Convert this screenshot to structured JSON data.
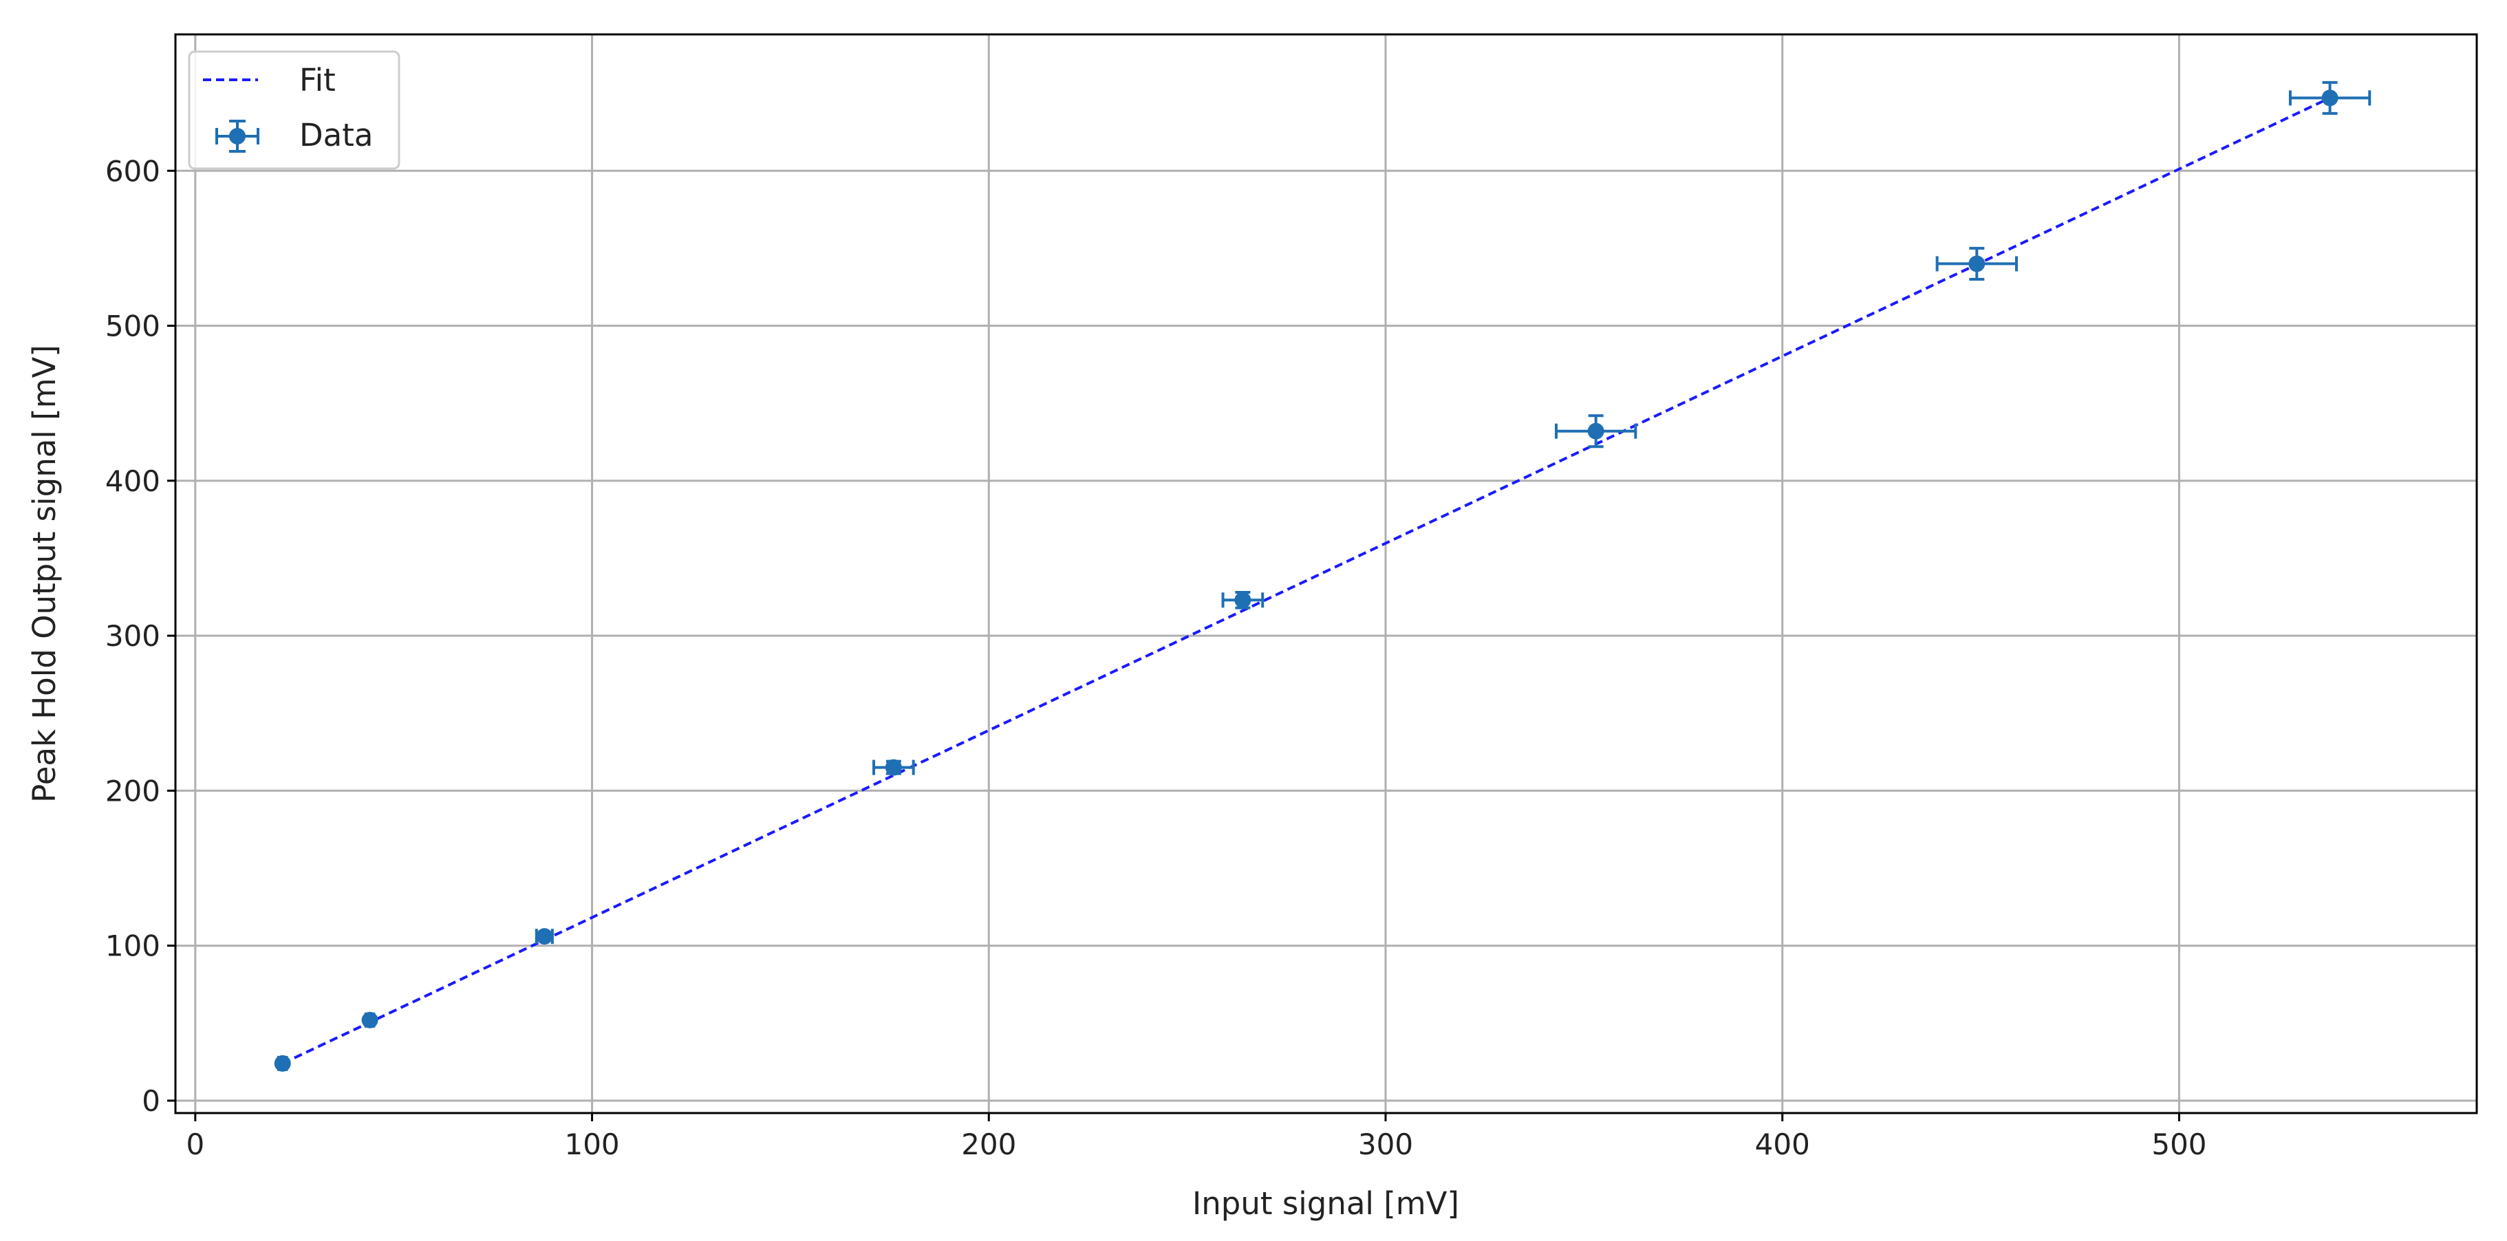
{
  "chart_data": {
    "type": "scatter",
    "title": "",
    "xlabel": "Input signal [mV]",
    "ylabel": "Peak Hold Output signal [mV]",
    "xlim": [
      -5,
      575
    ],
    "ylim": [
      -8,
      688
    ],
    "xticks": [
      0,
      100,
      200,
      300,
      400,
      500
    ],
    "yticks": [
      0,
      100,
      200,
      300,
      400,
      500,
      600
    ],
    "grid": true,
    "legend": {
      "position": "top-left",
      "entries": [
        "Fit",
        "Data"
      ]
    },
    "series": [
      {
        "name": "Fit",
        "kind": "line",
        "style": "dashed",
        "color": "#1a1aff",
        "x": [
          22,
          538
        ],
        "y": [
          24,
          647
        ]
      },
      {
        "name": "Data",
        "kind": "errorbar",
        "color": "#1f6fb4",
        "points": [
          {
            "x": 22,
            "y": 24,
            "xerr": 1,
            "yerr": 1
          },
          {
            "x": 44,
            "y": 52,
            "xerr": 1,
            "yerr": 1
          },
          {
            "x": 88,
            "y": 106,
            "xerr": 2,
            "yerr": 2
          },
          {
            "x": 176,
            "y": 215,
            "xerr": 5,
            "yerr": 4
          },
          {
            "x": 264,
            "y": 323,
            "xerr": 5,
            "yerr": 5
          },
          {
            "x": 353,
            "y": 432,
            "xerr": 10,
            "yerr": 10
          },
          {
            "x": 449,
            "y": 540,
            "xerr": 10,
            "yerr": 10
          },
          {
            "x": 538,
            "y": 647,
            "xerr": 10,
            "yerr": 10
          }
        ]
      }
    ]
  }
}
